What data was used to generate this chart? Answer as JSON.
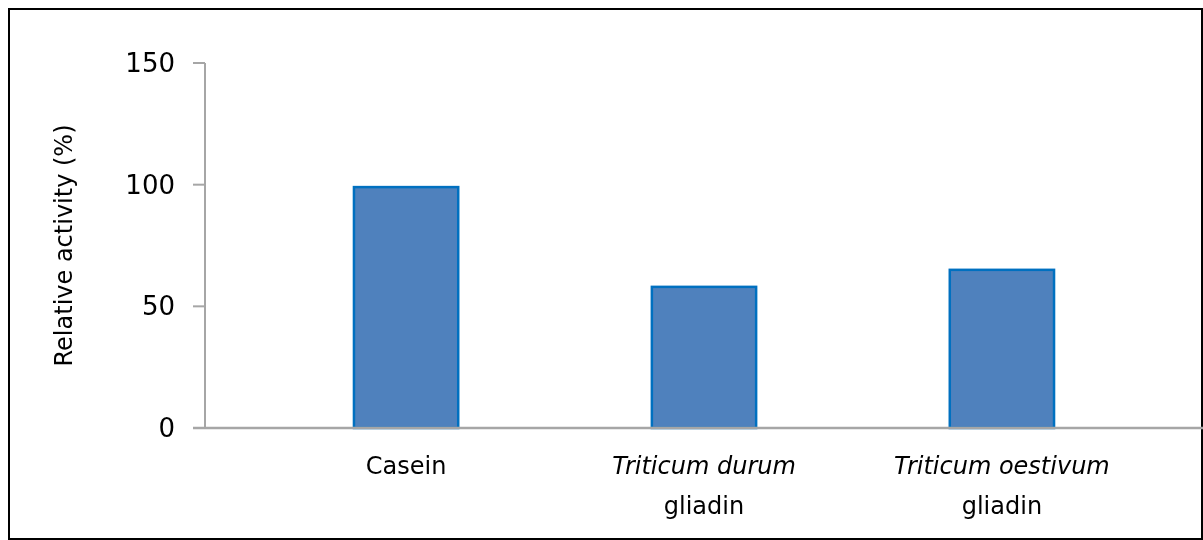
{
  "chart_data": {
    "type": "bar",
    "ylabel": "Relative activity (%)",
    "categories": [
      "Casein",
      "Triticum durum gliadin",
      "Triticum oestivum gliadin"
    ],
    "values": [
      99,
      58,
      65
    ],
    "color": "#4f81bd",
    "ylim": [
      0,
      150
    ],
    "yticks": [
      0,
      50,
      100,
      150
    ],
    "grid": false
  }
}
